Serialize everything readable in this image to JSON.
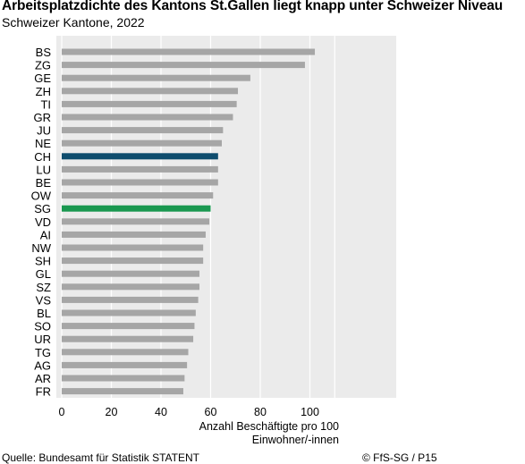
{
  "header": {
    "title": "Arbeitsplatzdichte des Kantons St.Gallen liegt knapp unter Schweizer Niveau",
    "subtitle": "Schweizer Kantone, 2022"
  },
  "footer": {
    "source": "Quelle: Bundesamt für Statistik STATENT",
    "copyright": "© FfS-SG / P15"
  },
  "colors": {
    "panel_background": "#ebebeb",
    "bar_default": "#a6a6a6",
    "bar_ch": "#0f4d6e",
    "bar_sg": "#1a9850"
  },
  "chart_data": {
    "type": "bar",
    "orientation": "horizontal",
    "categories": [
      "BS",
      "ZG",
      "GE",
      "ZH",
      "TI",
      "GR",
      "JU",
      "NE",
      "CH",
      "LU",
      "BE",
      "OW",
      "SG",
      "VD",
      "AI",
      "NW",
      "SH",
      "GL",
      "SZ",
      "VS",
      "BL",
      "SO",
      "UR",
      "TG",
      "AG",
      "AR",
      "FR"
    ],
    "values": [
      102,
      98,
      76,
      71,
      70.5,
      69,
      65,
      64.5,
      63,
      63,
      63,
      61,
      60,
      59.5,
      58,
      57,
      57,
      55.5,
      55.5,
      55,
      54,
      53.5,
      53,
      51,
      50.5,
      49.5,
      49
    ],
    "highlight": {
      "CH": "bar_ch",
      "SG": "bar_sg"
    },
    "xlabel": "Anzahl Beschäftigte pro 100\nEinwohner/-innen",
    "xticks": [
      0,
      20,
      40,
      60,
      80,
      100
    ],
    "xlim": [
      0,
      110
    ],
    "grid": "vertical"
  }
}
